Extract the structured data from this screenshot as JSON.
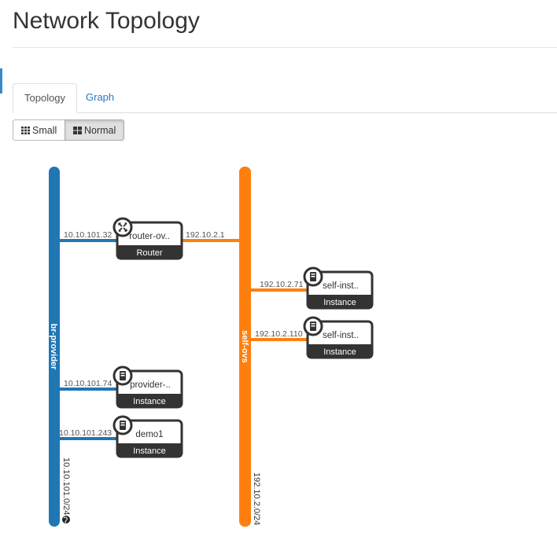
{
  "page": {
    "title": "Network Topology"
  },
  "tabs": [
    {
      "label": "Topology",
      "active": true
    },
    {
      "label": "Graph",
      "active": false
    }
  ],
  "view_toggle": {
    "small_label": "Small",
    "normal_label": "Normal",
    "selected": "Normal"
  },
  "colors": {
    "provider": "#1f77b4",
    "selfservice": "#ff7f0e",
    "node_dark": "#333333",
    "link_blue": "#2a78c0"
  },
  "networks": [
    {
      "name": "br-provider",
      "cidr": "10.10.101.0/24",
      "color": "#1f77b4",
      "external": true,
      "icon": "globe-icon"
    },
    {
      "name": "self-ovs",
      "cidr": "192.10.2.0/24",
      "color": "#ff7f0e",
      "external": false
    }
  ],
  "routers": [
    {
      "name": "router-ov..",
      "type": "Router",
      "icon": "router-icon",
      "ports": [
        {
          "network": "br-provider",
          "ip": "10.10.101.32"
        },
        {
          "network": "self-ovs",
          "ip": "192.10.2.1"
        }
      ]
    }
  ],
  "instances": [
    {
      "name": "self-inst..",
      "type": "Instance",
      "icon": "server-icon",
      "network": "self-ovs",
      "ip": "192.10.2.71"
    },
    {
      "name": "self-inst..",
      "type": "Instance",
      "icon": "server-icon",
      "network": "self-ovs",
      "ip": "192.10.2.110"
    },
    {
      "name": "provider-..",
      "type": "Instance",
      "icon": "server-icon",
      "network": "br-provider",
      "ip": "10.10.101.74"
    },
    {
      "name": "demo1",
      "type": "Instance",
      "icon": "server-icon",
      "network": "br-provider",
      "ip": "10.10.101.243"
    }
  ]
}
